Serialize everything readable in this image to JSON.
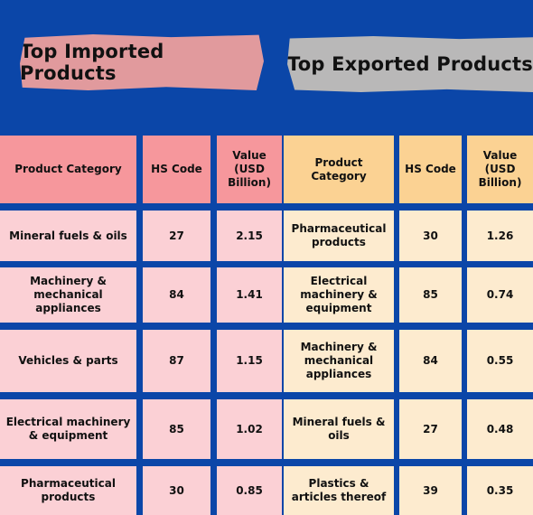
{
  "imports": {
    "title": "Top Imported Products",
    "headers": [
      "Product Category",
      "HS Code",
      "Value (USD Billion)"
    ],
    "rows": [
      {
        "category": "Mineral fuels & oils",
        "hs_code": "27",
        "value": "2.15"
      },
      {
        "category": "Machinery & mechanical appliances",
        "hs_code": "84",
        "value": "1.41"
      },
      {
        "category": "Vehicles & parts",
        "hs_code": "87",
        "value": "1.15"
      },
      {
        "category": "Electrical machinery & equipment",
        "hs_code": "85",
        "value": "1.02"
      },
      {
        "category": "Pharmaceutical products",
        "hs_code": "30",
        "value": "0.85"
      }
    ]
  },
  "exports": {
    "title": "Top Exported Products",
    "headers": [
      "Product Category",
      "HS Code",
      "Value (USD Billion)"
    ],
    "rows": [
      {
        "category": "Pharmaceutical products",
        "hs_code": "30",
        "value": "1.26"
      },
      {
        "category": "Electrical machinery & equipment",
        "hs_code": "85",
        "value": "0.74"
      },
      {
        "category": "Machinery & mechanical appliances",
        "hs_code": "84",
        "value": "0.55"
      },
      {
        "category": "Mineral fuels & oils",
        "hs_code": "27",
        "value": "0.48"
      },
      {
        "category": "Plastics & articles thereof",
        "hs_code": "39",
        "value": "0.35"
      }
    ]
  },
  "colors": {
    "background": "#0b46a8",
    "import_header": "#f6979c",
    "import_body": "#fbd0d5",
    "export_header": "#fbd293",
    "export_body": "#fdebcf",
    "import_tape": "#e19a9d",
    "export_tape": "#b9b8b8"
  }
}
